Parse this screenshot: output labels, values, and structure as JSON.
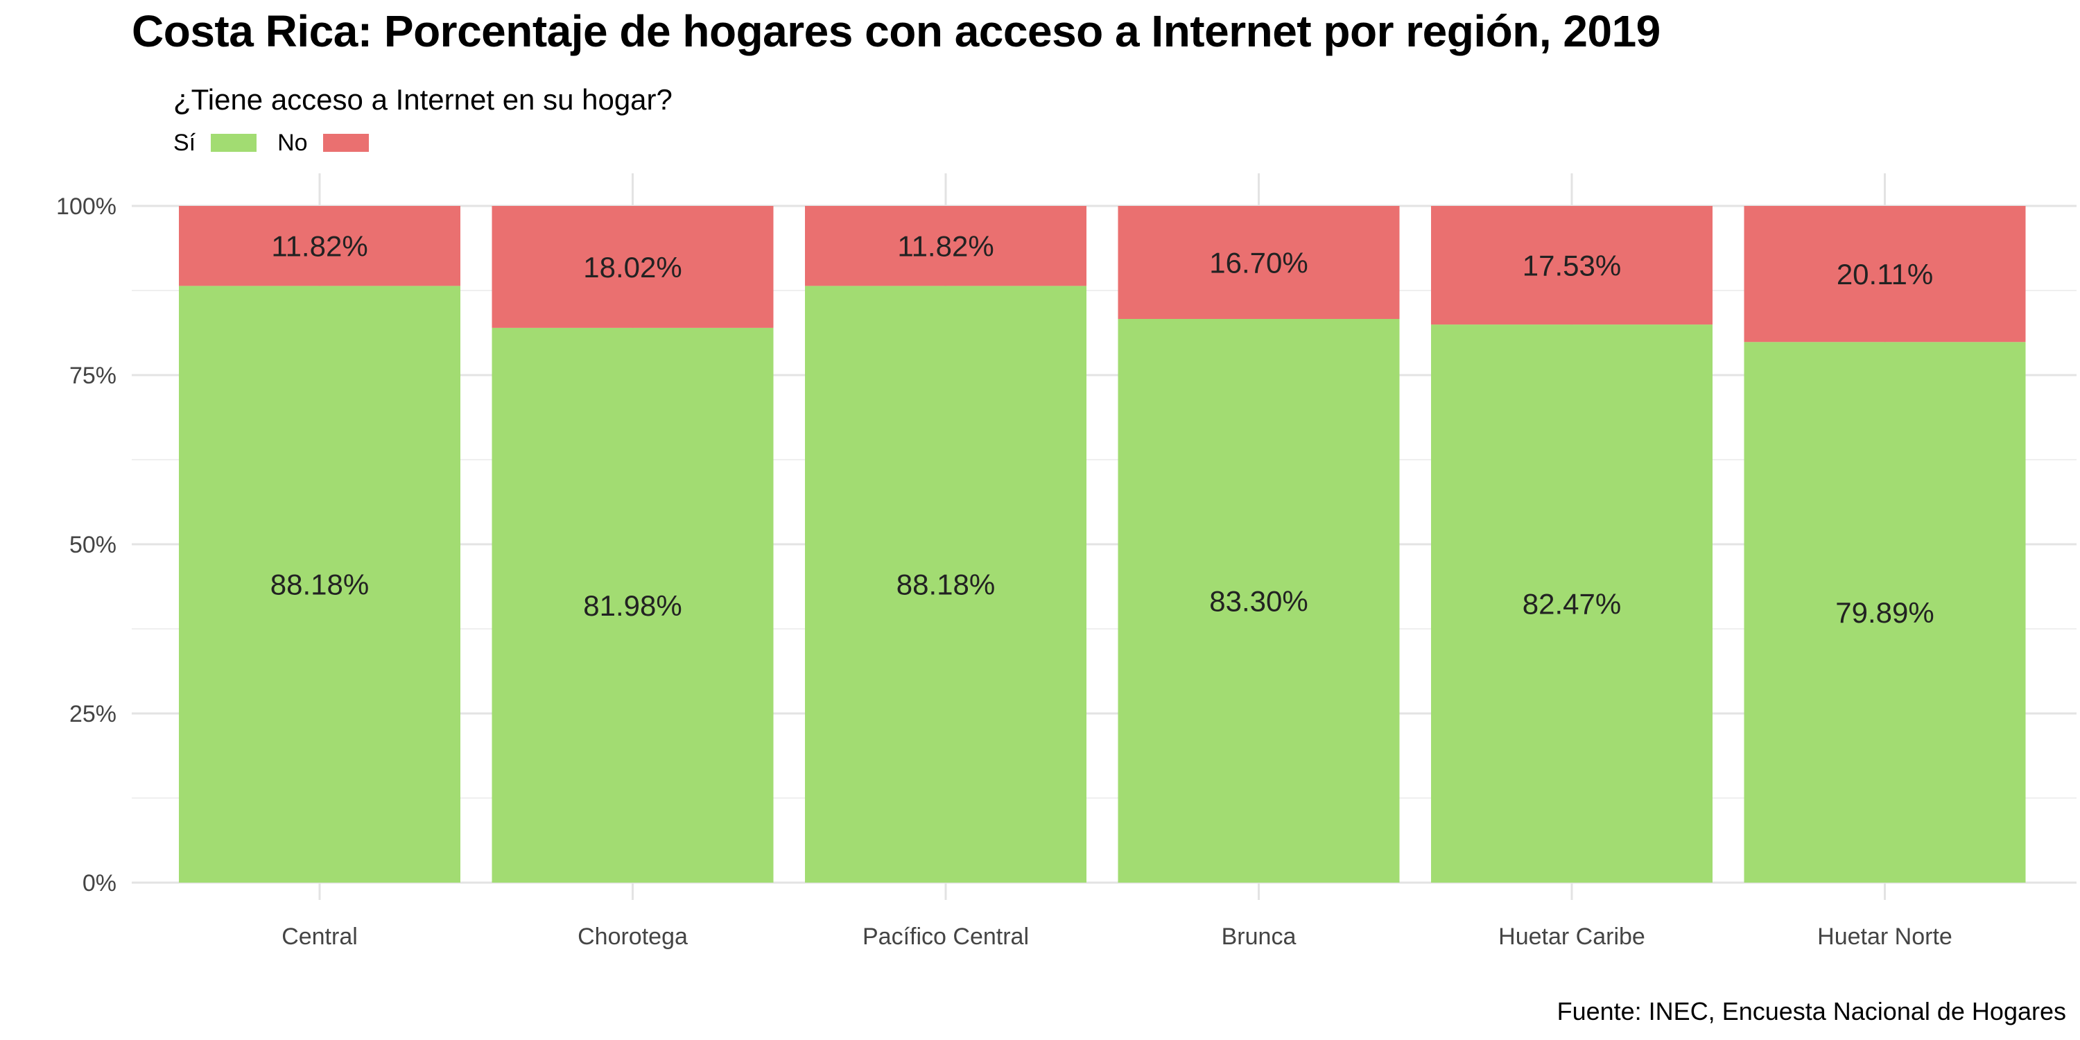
{
  "chart_data": {
    "type": "bar",
    "stacked": true,
    "title": "Costa Rica: Porcentaje de hogares con acceso a Internet por región, 2019",
    "legend": {
      "title": "¿Tiene acceso a Internet en su hogar?",
      "position": "top-left"
    },
    "categories": [
      "Central",
      "Chorotega",
      "Pacífico Central",
      "Brunca",
      "Huetar Caribe",
      "Huetar Norte"
    ],
    "series": [
      {
        "name": "Sí",
        "color": "#a2dc72",
        "values": [
          88.18,
          81.98,
          88.18,
          83.3,
          82.47,
          79.89
        ],
        "labels": [
          "88.18%",
          "81.98%",
          "88.18%",
          "83.30%",
          "82.47%",
          "79.89%"
        ]
      },
      {
        "name": "No",
        "color": "#ea7070",
        "values": [
          11.82,
          18.02,
          11.82,
          16.7,
          17.53,
          20.11
        ],
        "labels": [
          "11.82%",
          "18.02%",
          "11.82%",
          "16.70%",
          "17.53%",
          "20.11%"
        ]
      }
    ],
    "ylim": [
      0,
      100
    ],
    "yticks": [
      0,
      25,
      50,
      75,
      100
    ],
    "ytick_labels": [
      "0%",
      "25%",
      "50%",
      "75%",
      "100%"
    ],
    "xlabel": "",
    "ylabel": "",
    "grid": true,
    "caption": "Fuente: INEC, Encuesta Nacional de Hogares"
  }
}
